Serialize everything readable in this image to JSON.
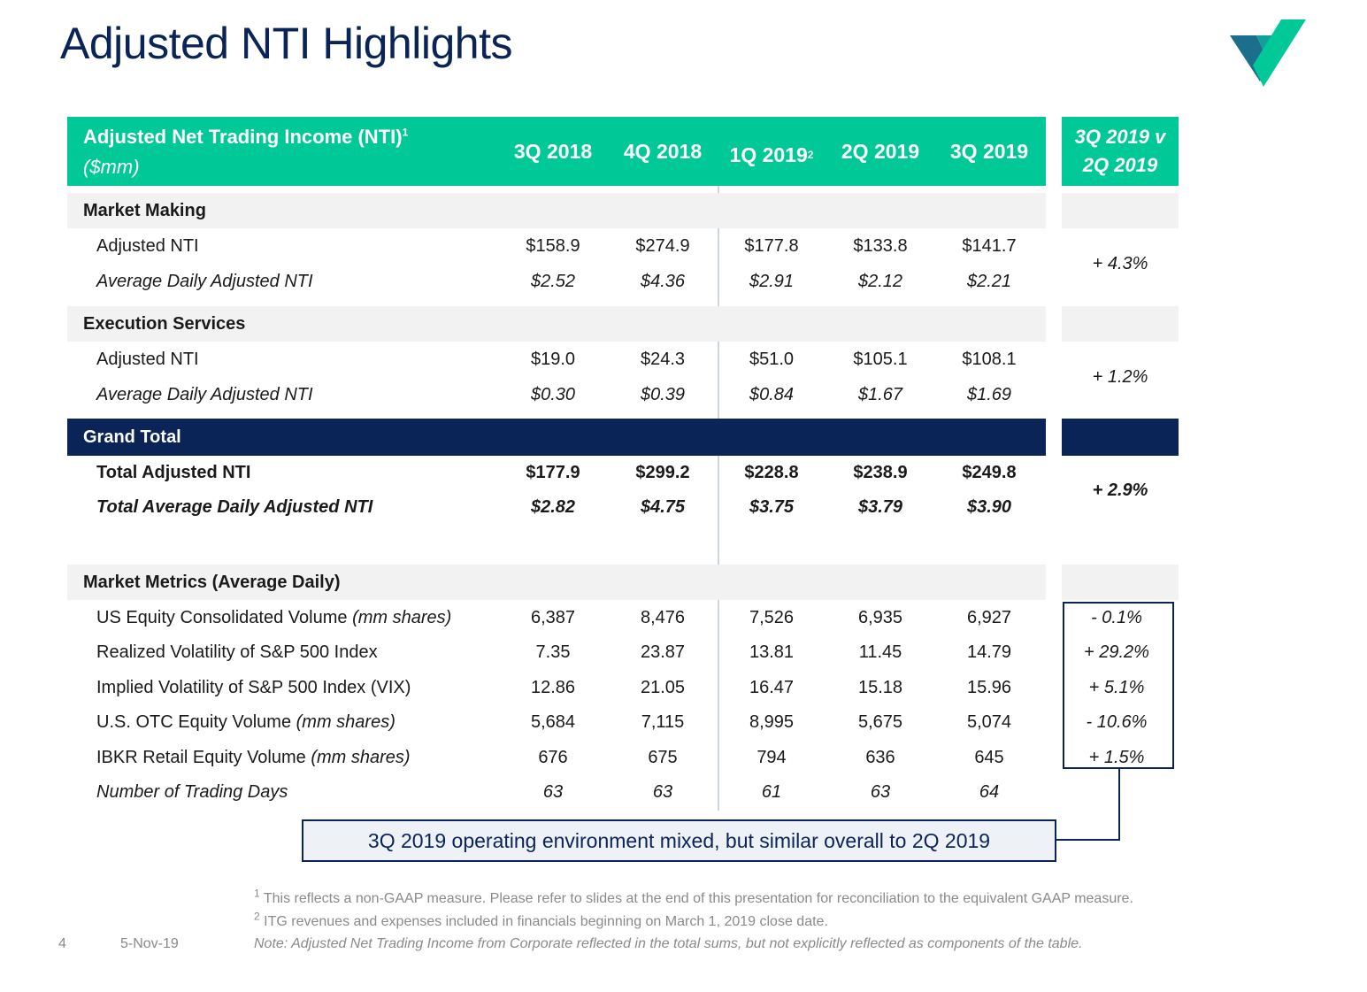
{
  "title": "Adjusted NTI Highlights",
  "logo": {
    "icon": "company-logo-icon",
    "colors": [
      "#00c896",
      "#0fa09a",
      "#1b6e8c"
    ]
  },
  "header": {
    "label": "Adjusted Net Trading Income (NTI)",
    "label_sup": "1",
    "unit": "($mm)",
    "columns": [
      "3Q 2018",
      "4Q 2018",
      "1Q 2019",
      "2Q 2019",
      "3Q 2019"
    ],
    "col3_sup": "2",
    "compare_line1": "3Q 2019 v",
    "compare_line2": "2Q 2019"
  },
  "market_making": {
    "title": "Market Making",
    "rows": [
      {
        "label": "Adjusted NTI",
        "values": [
          "$158.9",
          "$274.9",
          "$177.8",
          "$133.8",
          "$141.7"
        ]
      },
      {
        "label": "Average Daily Adjusted NTI",
        "values": [
          "$2.52",
          "$4.36",
          "$2.91",
          "$2.12",
          "$2.21"
        ]
      }
    ],
    "change": "+ 4.3%"
  },
  "execution_services": {
    "title": "Execution Services",
    "rows": [
      {
        "label": "Adjusted NTI",
        "values": [
          "$19.0",
          "$24.3",
          "$51.0",
          "$105.1",
          "$108.1"
        ]
      },
      {
        "label": "Average Daily Adjusted NTI",
        "values": [
          "$0.30",
          "$0.39",
          "$0.84",
          "$1.67",
          "$1.69"
        ]
      }
    ],
    "change": "+ 1.2%"
  },
  "grand_total": {
    "title": "Grand Total",
    "rows": [
      {
        "label": "Total Adjusted NTI",
        "values": [
          "$177.9",
          "$299.2",
          "$228.8",
          "$238.9",
          "$249.8"
        ]
      },
      {
        "label": "Total Average Daily Adjusted NTI",
        "values": [
          "$2.82",
          "$4.75",
          "$3.75",
          "$3.79",
          "$3.90"
        ]
      }
    ],
    "change": "+ 2.9%"
  },
  "market_metrics": {
    "title": "Market Metrics (Average Daily)",
    "rows": [
      {
        "label": "US Equity Consolidated Volume",
        "unit": "(mm shares)",
        "values": [
          "6,387",
          "8,476",
          "7,526",
          "6,935",
          "6,927"
        ],
        "change": "- 0.1%"
      },
      {
        "label": "Realized Volatility of S&P 500 Index",
        "unit": "",
        "values": [
          "7.35",
          "23.87",
          "13.81",
          "11.45",
          "14.79"
        ],
        "change": "+ 29.2%"
      },
      {
        "label": "Implied Volatility of S&P 500 Index (VIX)",
        "unit": "",
        "values": [
          "12.86",
          "21.05",
          "16.47",
          "15.18",
          "15.96"
        ],
        "change": "+ 5.1%"
      },
      {
        "label": "U.S. OTC Equity Volume",
        "unit": "(mm shares)",
        "values": [
          "5,684",
          "7,115",
          "8,995",
          "5,675",
          "5,074"
        ],
        "change": "- 10.6%"
      },
      {
        "label": "IBKR Retail Equity Volume",
        "unit": "(mm shares)",
        "values": [
          "676",
          "675",
          "794",
          "636",
          "645"
        ],
        "change": "+ 1.5%"
      },
      {
        "label": "Number of Trading Days",
        "unit": "",
        "values": [
          "63",
          "63",
          "61",
          "63",
          "64"
        ]
      }
    ]
  },
  "callout": "3Q 2019 operating environment mixed, but similar overall to 2Q 2019",
  "footnotes": {
    "n1_sup": "1",
    "n1": "This reflects a non-GAAP measure. Please refer to slides at the end of this presentation for reconciliation to the equivalent GAAP measure.",
    "n2_sup": "2",
    "n2": "ITG revenues and expenses included in financials beginning on March 1, 2019 close date.",
    "note": "Note: Adjusted Net Trading Income from Corporate reflected in the total sums, but not explicitly reflected as components of the table."
  },
  "page_number": "4",
  "date": "5-Nov-19"
}
